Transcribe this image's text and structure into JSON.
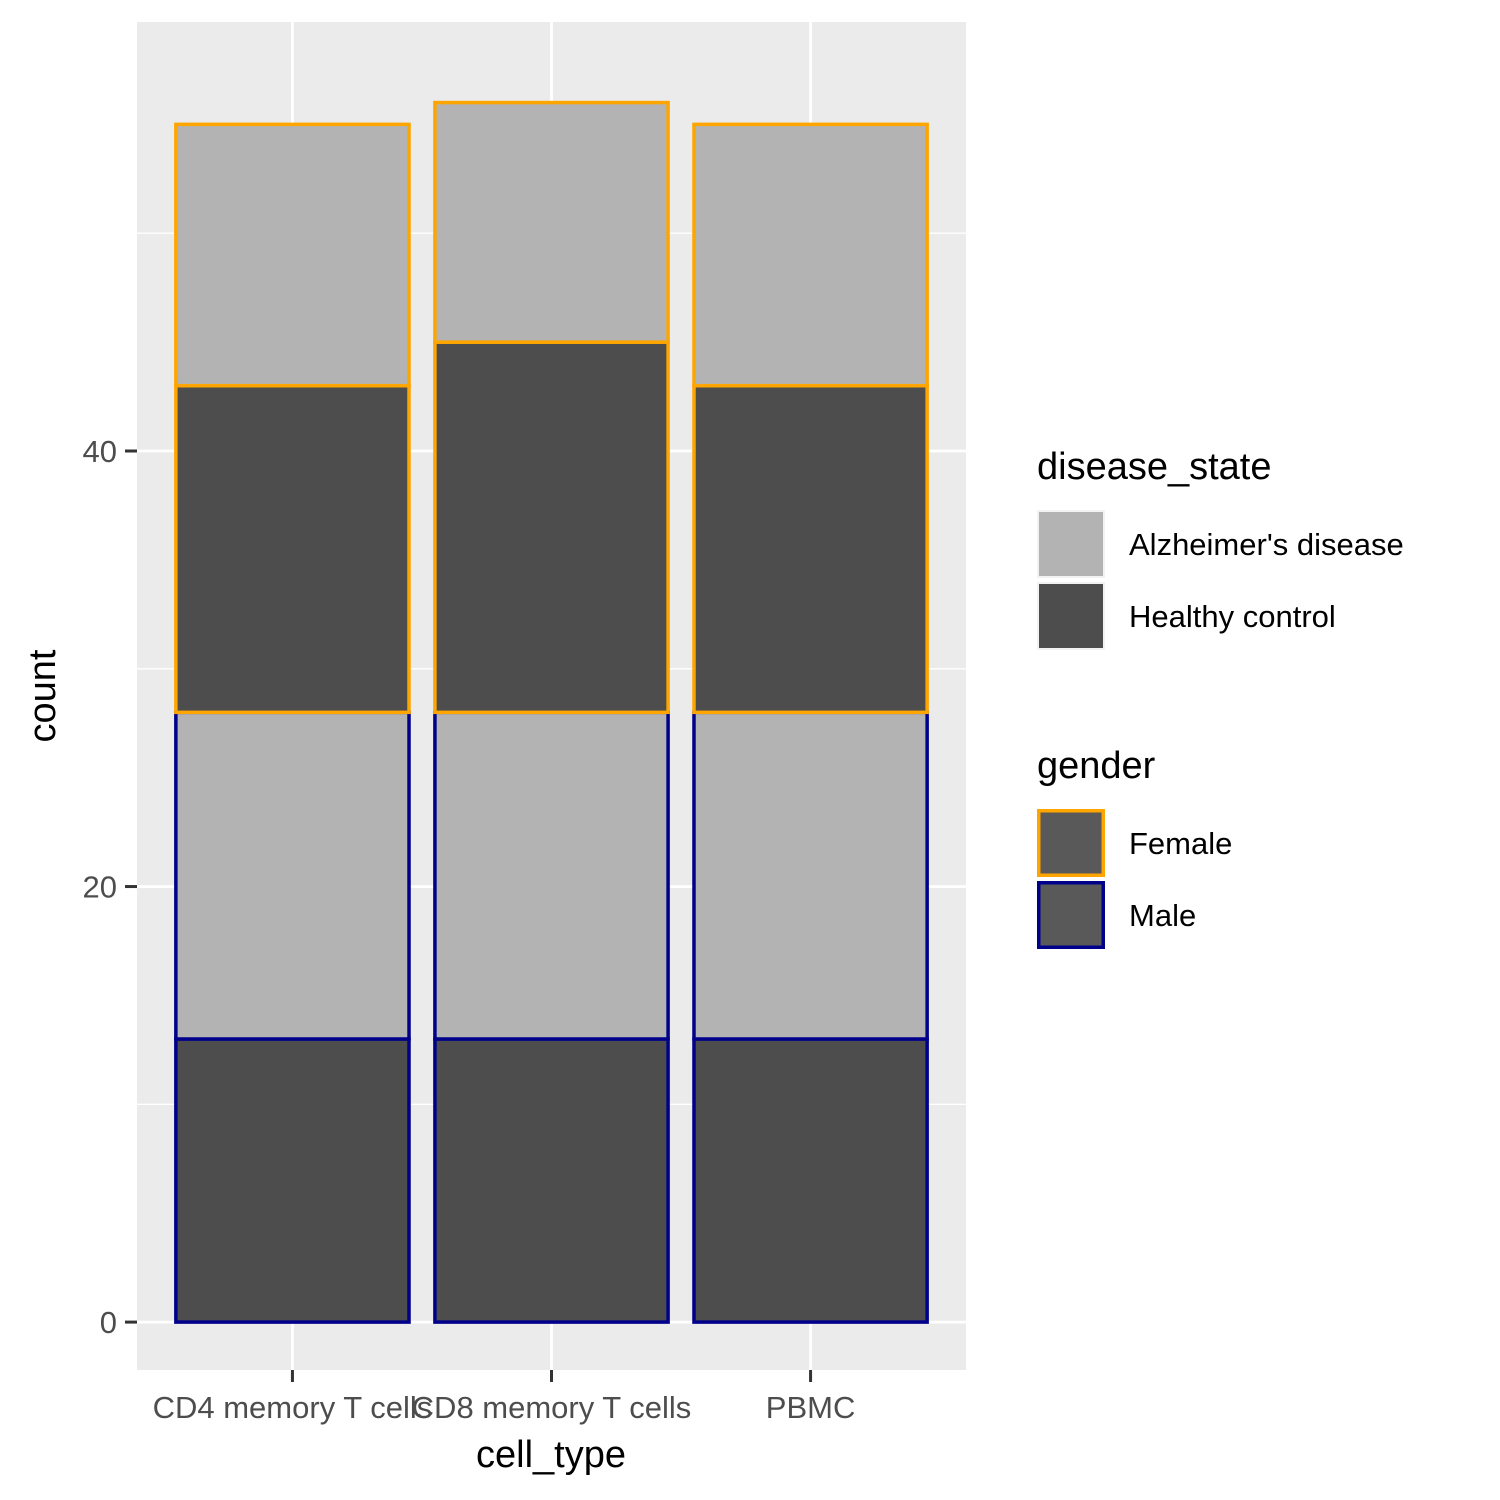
{
  "chart_data": {
    "type": "bar",
    "stacked": true,
    "xlabel": "cell_type",
    "ylabel": "count",
    "categories": [
      "CD4 memory T cells",
      "CD8 memory T cells",
      "PBMC"
    ],
    "y_ticks": [
      0,
      20,
      40
    ],
    "ylim": [
      -2.2,
      59.7
    ],
    "grid": true,
    "series": [
      {
        "gender": "Male",
        "disease_state": "Healthy control",
        "values": [
          13,
          13,
          13
        ]
      },
      {
        "gender": "Male",
        "disease_state": "Alzheimer's disease",
        "values": [
          15,
          15,
          15
        ]
      },
      {
        "gender": "Female",
        "disease_state": "Healthy control",
        "values": [
          15,
          17,
          15
        ]
      },
      {
        "gender": "Female",
        "disease_state": "Alzheimer's disease",
        "values": [
          12,
          11,
          12
        ]
      }
    ],
    "fill_colors": {
      "Alzheimer's disease": "#b3b3b3",
      "Healthy control": "#4d4d4d"
    },
    "outline_colors": {
      "Female": "#ffa500",
      "Male": "#00008b"
    },
    "legend_placement": "right",
    "legends": [
      {
        "title": "disease_state",
        "items": [
          "Alzheimer's disease",
          "Healthy control"
        ]
      },
      {
        "title": "gender",
        "items": [
          "Female",
          "Male"
        ]
      }
    ]
  }
}
